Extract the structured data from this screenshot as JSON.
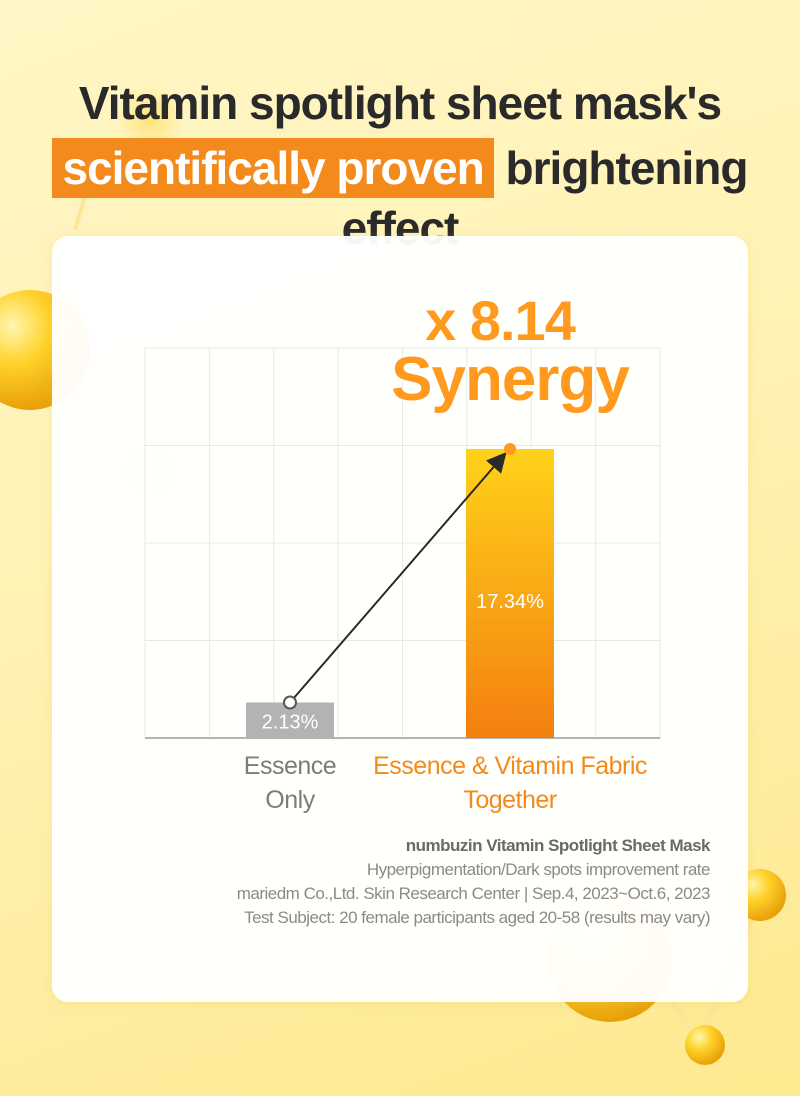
{
  "headline": {
    "line1": "Vitamin spotlight sheet mask's",
    "highlight": "scientifically proven",
    "rest": "brightening effect"
  },
  "colors": {
    "accent": "#f28a1c",
    "bar_gray": "#b3b3b3",
    "bar_orange_top": "#ffd21a",
    "bar_orange_bottom": "#f47f10",
    "callout_fill": "#ff9a1f"
  },
  "chart_data": {
    "type": "bar",
    "categories": [
      "Essence Only",
      "Essence & Vitamin Fabric Together"
    ],
    "category_lines": [
      [
        "Essence",
        "Only"
      ],
      [
        "Essence & Vitamin Fabric",
        "Together"
      ]
    ],
    "values": [
      2.13,
      17.34
    ],
    "value_labels": [
      "2.13%",
      "17.34%"
    ],
    "ylim": [
      0,
      23.4
    ],
    "grid": true,
    "annotation": {
      "line1": "x 8.14",
      "line2": "Synergy"
    }
  },
  "footnote": {
    "brand": "numbuzin Vitamin Spotlight Sheet Mask",
    "line2": "Hyperpigmentation/Dark spots improvement rate",
    "line3": "mariedm Co.,Ltd. Skin Research Center | Sep.4, 2023~Oct.6, 2023",
    "line4": "Test Subject: 20 female participants aged 20-58 (results may vary)"
  }
}
